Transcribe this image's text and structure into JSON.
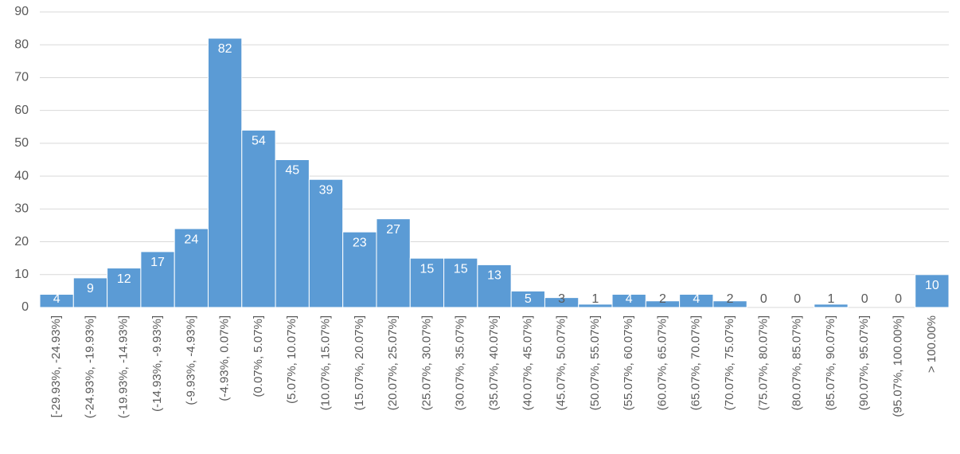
{
  "chart_data": {
    "type": "bar",
    "categories": [
      "[-29.93%, -24.93%]",
      "(-24.93%, -19.93%]",
      "(-19.93%, -14.93%]",
      "(-14.93%, -9.93%]",
      "(-9.93%, -4.93%]",
      "(-4.93%, 0.07%]",
      "(0.07%, 5.07%]",
      "(5.07%, 10.07%]",
      "(10.07%, 15.07%]",
      "(15.07%, 20.07%]",
      "(20.07%, 25.07%]",
      "(25.07%, 30.07%]",
      "(30.07%, 35.07%]",
      "(35.07%, 40.07%]",
      "(40.07%, 45.07%]",
      "(45.07%, 50.07%]",
      "(50.07%, 55.07%]",
      "(55.07%, 60.07%]",
      "(60.07%, 65.07%]",
      "(65.07%, 70.07%]",
      "(70.07%, 75.07%]",
      "(75.07%, 80.07%]",
      "(80.07%, 85.07%]",
      "(85.07%, 90.07%]",
      "(90.07%, 95.07%]",
      "(95.07%, 100.00%]",
      "> 100.00%"
    ],
    "values": [
      4,
      9,
      12,
      17,
      24,
      82,
      54,
      45,
      39,
      23,
      27,
      15,
      15,
      13,
      5,
      3,
      1,
      4,
      2,
      4,
      2,
      0,
      0,
      1,
      0,
      0,
      10
    ],
    "color": "#5b9bd5",
    "ylim": [
      0,
      90
    ],
    "yticks": [
      0,
      10,
      20,
      30,
      40,
      50,
      60,
      70,
      80,
      90
    ],
    "grid": true,
    "data_labels": true
  }
}
